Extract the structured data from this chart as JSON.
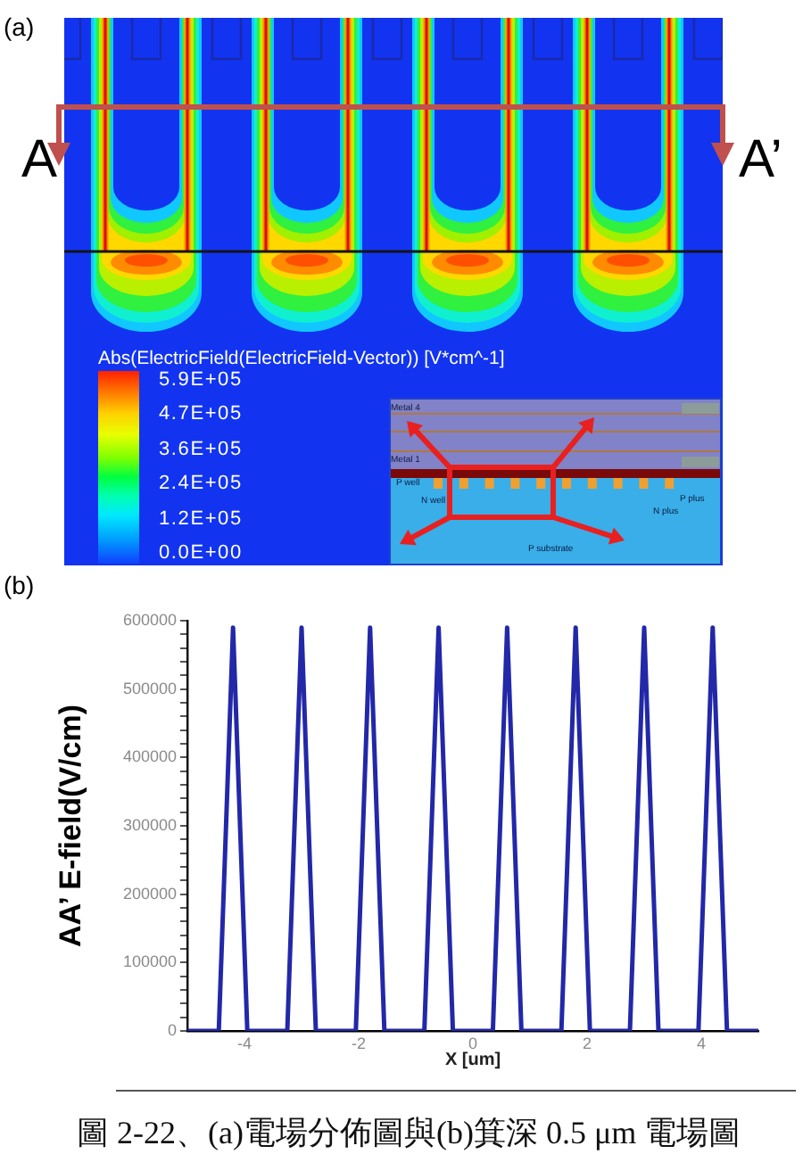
{
  "chart_data": [
    {
      "type": "other",
      "title": "(a)",
      "clabel": "Abs(ElectricField(ElectricField-Vector)) [V*cm^-1]",
      "annotations": [
        "A",
        "A’",
        "5.9E+05",
        "4.7E+05",
        "3.6E+05",
        "2.4E+05",
        "1.2E+05",
        "0.0E+00",
        "Metal 4",
        "Metal 1",
        "P well",
        "N well",
        "P plus",
        "N plus",
        "P substrate"
      ]
    },
    {
      "type": "line",
      "title": "(b)",
      "xlabel": "X [um]",
      "ylabel": "AA’ E-field(V/cm)",
      "x": [
        -5,
        -4.45,
        -4.2,
        -3.95,
        -3.6,
        -3.25,
        -3,
        -2.75,
        -2.4,
        -2.05,
        -1.8,
        -1.55,
        -1.2,
        -0.85,
        -0.6,
        -0.35,
        0,
        0.35,
        0.6,
        0.85,
        1.2,
        1.55,
        1.8,
        2.05,
        2.4,
        2.75,
        3,
        3.25,
        3.6,
        3.95,
        4.2,
        4.45,
        5
      ],
      "series": [
        {
          "color": "#2228a8",
          "values": [
            0,
            0,
            590000,
            0,
            0,
            0,
            590000,
            0,
            0,
            0,
            590000,
            0,
            0,
            0,
            590000,
            0,
            0,
            0,
            590000,
            0,
            0,
            0,
            590000,
            0,
            0,
            0,
            590000,
            0,
            0,
            0,
            590000,
            0,
            0
          ]
        }
      ],
      "xlim": [
        -5,
        5
      ],
      "xticks": [
        -4,
        -2,
        0,
        2,
        4
      ],
      "ylim": [
        0,
        600000
      ],
      "yticks": [
        0,
        {
          "value": 20000,
          "label": null
        },
        {
          "value": 40000,
          "label": null
        },
        {
          "value": 60000,
          "label": null
        },
        {
          "value": 80000,
          "label": null
        },
        100000,
        {
          "value": 120000,
          "label": null
        },
        {
          "value": 140000,
          "label": null
        },
        {
          "value": 160000,
          "label": null
        },
        {
          "value": 180000,
          "label": null
        },
        200000,
        {
          "value": 220000,
          "label": null
        },
        {
          "value": 240000,
          "label": null
        },
        {
          "value": 260000,
          "label": null
        },
        {
          "value": 280000,
          "label": null
        },
        300000,
        {
          "value": 320000,
          "label": null
        },
        {
          "value": 340000,
          "label": null
        },
        {
          "value": 360000,
          "label": null
        },
        {
          "value": 380000,
          "label": null
        },
        400000,
        {
          "value": 420000,
          "label": null
        },
        {
          "value": 440000,
          "label": null
        },
        {
          "value": 460000,
          "label": null
        },
        {
          "value": 480000,
          "label": null
        },
        500000,
        {
          "value": 520000,
          "label": null
        },
        {
          "value": 540000,
          "label": null
        },
        {
          "value": 560000,
          "label": null
        },
        {
          "value": 580000,
          "label": null
        },
        600000
      ],
      "annotations": [
        "圖 2-22、(a)電場分佈圖與(b)箕深 0.5 μm 電場圖"
      ]
    }
  ]
}
